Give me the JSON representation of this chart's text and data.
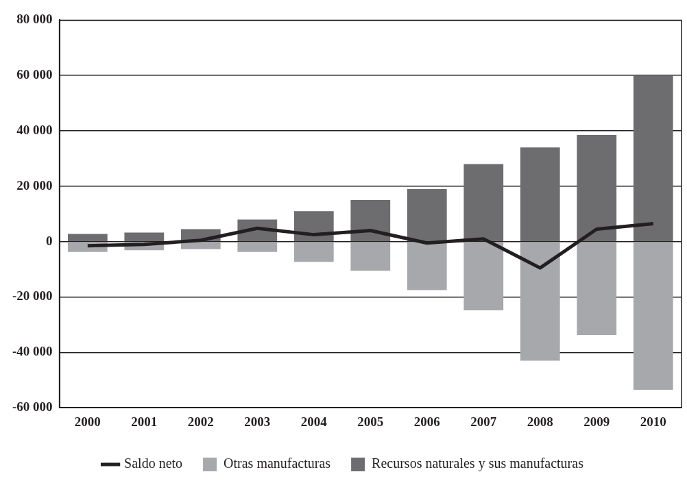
{
  "chart_data": {
    "type": "bar",
    "stacked": true,
    "categories": [
      "2000",
      "2001",
      "2002",
      "2003",
      "2004",
      "2005",
      "2006",
      "2007",
      "2008",
      "2009",
      "2010"
    ],
    "series": [
      {
        "name": "Otras manufacturas",
        "color": "#a7a8ab",
        "values": [
          -3700,
          -3100,
          -2700,
          -3700,
          -7300,
          -10500,
          -17500,
          -24800,
          -43000,
          -33700,
          -53500
        ]
      },
      {
        "name": "Recursos naturales y sus manufacturas",
        "color": "#6d6d6f",
        "values": [
          2800,
          3300,
          4500,
          8000,
          11000,
          15000,
          19000,
          28000,
          34000,
          38500,
          60000
        ]
      },
      {
        "name": "Saldo neto",
        "type": "line",
        "color": "#231f20",
        "values": [
          -1500,
          -1000,
          500,
          4800,
          2500,
          4000,
          -500,
          1000,
          -9500,
          4500,
          6500
        ]
      }
    ],
    "ylim": [
      -60000,
      80000
    ],
    "yticks": [
      {
        "value": -60000,
        "label": "-60 000"
      },
      {
        "value": -40000,
        "label": "-40 000"
      },
      {
        "value": -20000,
        "label": "-20 000"
      },
      {
        "value": 0,
        "label": "0"
      },
      {
        "value": 20000,
        "label": "20 000"
      },
      {
        "value": 40000,
        "label": "40 000"
      },
      {
        "value": 60000,
        "label": "60 000"
      },
      {
        "value": 80000,
        "label": "80 000"
      }
    ],
    "grid": "y",
    "legend": "bottom",
    "marker": "none"
  }
}
